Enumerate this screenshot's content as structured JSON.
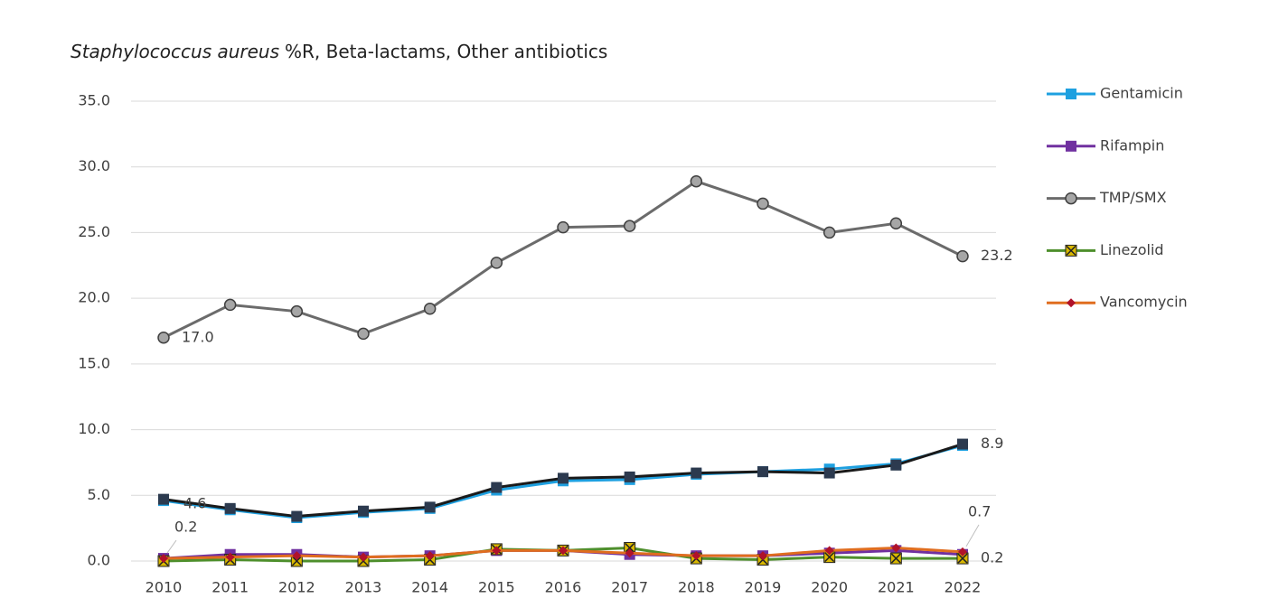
{
  "chart_data": {
    "type": "line",
    "title": [
      "Staphylococcus aureus",
      "%R, Beta-lactams, Other antibiotics"
    ],
    "categories": [
      "2010",
      "2011",
      "2012",
      "2013",
      "2014",
      "2015",
      "2016",
      "2017",
      "2018",
      "2019",
      "2020",
      "2021",
      "2022"
    ],
    "ylim": [
      0,
      35
    ],
    "yticks": [
      {
        "value": 0,
        "label": "0.0"
      },
      {
        "value": 5,
        "label": "5.0"
      },
      {
        "value": 10,
        "label": "10.0"
      },
      {
        "value": 15,
        "label": "15.0"
      },
      {
        "value": 20,
        "label": "20.0"
      },
      {
        "value": 25,
        "label": "25.0"
      },
      {
        "value": 30,
        "label": "30.0"
      },
      {
        "value": 35,
        "label": "35.0"
      }
    ],
    "grid": true,
    "legend": "right",
    "series": [
      {
        "name": "Gentamicin",
        "color": "#1ea0e0",
        "marker": "square",
        "values": [
          4.6,
          3.9,
          3.3,
          3.7,
          4.0,
          5.4,
          6.1,
          6.2,
          6.6,
          6.8,
          7.0,
          7.4,
          8.8
        ],
        "value_labels": [
          "4.6",
          null,
          null,
          null,
          null,
          null,
          null,
          null,
          null,
          null,
          null,
          null,
          null
        ]
      },
      {
        "name": "Rifampin",
        "color": "#7030a0",
        "marker": "square",
        "values": [
          0.2,
          0.5,
          0.5,
          0.3,
          0.4,
          0.8,
          0.8,
          0.5,
          0.4,
          0.4,
          0.6,
          0.8,
          0.5
        ],
        "value_labels": [
          "0.2",
          null,
          null,
          null,
          null,
          null,
          null,
          null,
          null,
          null,
          null,
          null,
          null
        ]
      },
      {
        "name": "TMP/SMX",
        "color": "#6b6b6b",
        "marker": "circle",
        "values": [
          17.0,
          19.5,
          19.0,
          17.3,
          19.2,
          22.7,
          25.4,
          25.5,
          28.9,
          27.2,
          25.0,
          25.7,
          23.2
        ],
        "value_labels": [
          "17.0",
          null,
          null,
          null,
          null,
          null,
          null,
          null,
          null,
          null,
          null,
          null,
          "23.2"
        ]
      },
      {
        "name": "Linezolid",
        "color": "#4e8f2c",
        "marker": "xsquare",
        "values": [
          0.0,
          0.1,
          0.0,
          0.0,
          0.1,
          0.9,
          0.8,
          1.0,
          0.2,
          0.1,
          0.3,
          0.2,
          0.2
        ],
        "value_labels": [
          null,
          null,
          null,
          null,
          null,
          null,
          null,
          null,
          null,
          null,
          null,
          null,
          "0.2"
        ]
      },
      {
        "name": "Vancomycin",
        "color": "#e06d1f",
        "marker": "diamond",
        "values": [
          0.2,
          0.3,
          0.4,
          0.3,
          0.4,
          0.8,
          0.8,
          0.6,
          0.4,
          0.4,
          0.8,
          1.0,
          0.7
        ],
        "value_labels": [
          null,
          null,
          null,
          null,
          null,
          null,
          null,
          null,
          null,
          null,
          null,
          null,
          "0.7"
        ]
      },
      {
        "color": "#1a1a1a",
        "marker": "square",
        "values": [
          4.7,
          4.0,
          3.4,
          3.8,
          4.1,
          5.6,
          6.3,
          6.4,
          6.7,
          6.8,
          6.7,
          7.3,
          8.9
        ],
        "value_labels": [
          null,
          null,
          null,
          null,
          null,
          null,
          null,
          null,
          null,
          null,
          null,
          null,
          "8.9"
        ]
      }
    ]
  }
}
